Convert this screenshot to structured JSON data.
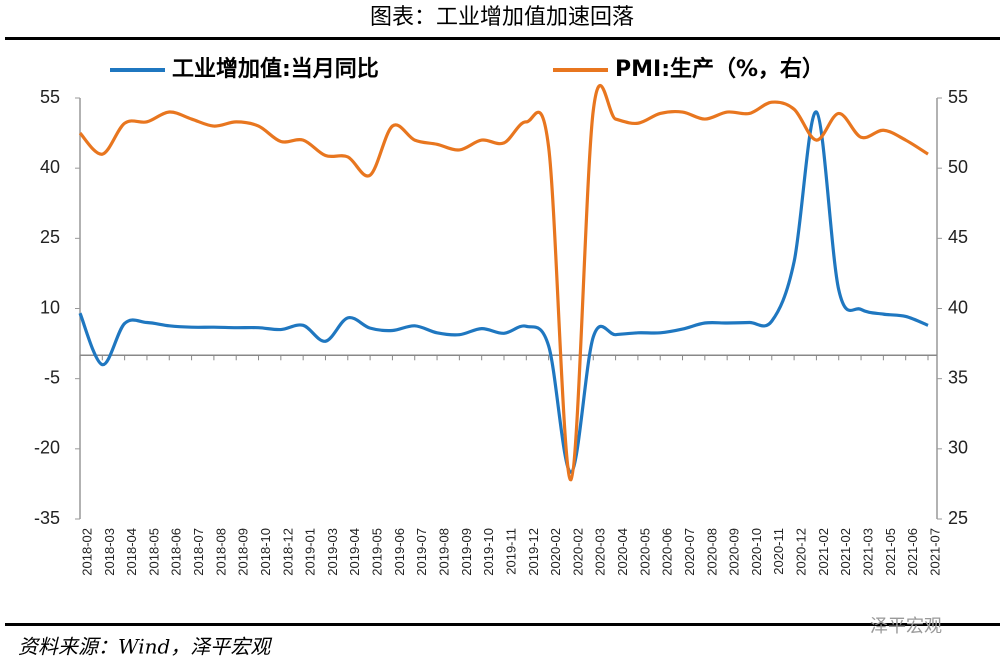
{
  "chart_data": {
    "type": "line",
    "title": "图表：工业增加值加速回落",
    "source": "资料来源：Wind，泽平宏观",
    "watermark": "泽平宏观",
    "categories": [
      "2018-02",
      "2018-03",
      "2018-04",
      "2018-05",
      "2018-06",
      "2018-07",
      "2018-08",
      "2018-09",
      "2018-10",
      "2018-12",
      "2019-01",
      "2019-03",
      "2019-04",
      "2019-05",
      "2019-06",
      "2019-07",
      "2019-08",
      "2019-09",
      "2019-10",
      "2019-11",
      "2019-12",
      "2020-02",
      "2020-02",
      "2020-03",
      "2020-04",
      "2020-05",
      "2020-06",
      "2020-07",
      "2020-08",
      "2020-09",
      "2020-10",
      "2020-11",
      "2020-12",
      "2021-02",
      "2021-02",
      "2021-03",
      "2021-05",
      "2021-06",
      "2021-07"
    ],
    "series": [
      {
        "name": "工业增加值:当月同比",
        "color": "#1f77c0",
        "axis": "y",
        "values": [
          9,
          -2,
          6.8,
          7,
          6.3,
          6,
          6,
          5.9,
          5.9,
          5.5,
          6.4,
          3,
          8,
          5.8,
          5.3,
          6.3,
          4.8,
          4.4,
          5.7,
          4.7,
          6.2,
          2,
          -25,
          3.9,
          4.4,
          4.8,
          4.8,
          5.6,
          6.9,
          6.9,
          7,
          7.3,
          20,
          52,
          14,
          9.8,
          8.8,
          8.3,
          6.4
        ]
      },
      {
        "name": "PMI:生产（%，右）",
        "color": "#e8761f",
        "axis": "y2",
        "values": [
          52.5,
          51,
          53.2,
          53.3,
          54,
          53.5,
          53,
          53.3,
          53,
          51.9,
          52,
          50.9,
          50.8,
          49.5,
          53,
          52,
          51.7,
          51.3,
          52,
          51.8,
          53.3,
          51.5,
          27.8,
          54.1,
          53.5,
          53.2,
          53.9,
          54,
          53.5,
          54,
          53.9,
          54.7,
          54.2,
          52,
          53.9,
          52.2,
          52.7,
          52,
          51
        ]
      }
    ],
    "ylim": [
      -35,
      55
    ],
    "yticks": [
      -35,
      -20,
      -5,
      10,
      25,
      40,
      55
    ],
    "y2lim": [
      25,
      55
    ],
    "y2ticks": [
      25,
      30,
      35,
      40,
      45,
      50,
      55
    ],
    "grid": false,
    "legend": "top"
  }
}
